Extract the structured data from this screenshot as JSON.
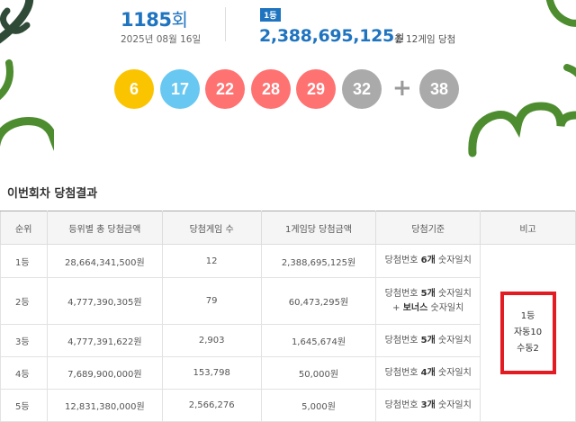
{
  "round": {
    "number": "1185",
    "suffix": "회",
    "date": "2025년 08월 16일"
  },
  "first_prize": {
    "badge": "1등",
    "amount": "2,388,695,125",
    "unit": "원",
    "winners_text": "총 12게임 당첨"
  },
  "balls": [
    {
      "number": "6",
      "color": "#fbc400"
    },
    {
      "number": "17",
      "color": "#69c8f2"
    },
    {
      "number": "22",
      "color": "#ff7272"
    },
    {
      "number": "28",
      "color": "#ff7272"
    },
    {
      "number": "29",
      "color": "#ff7272"
    },
    {
      "number": "32",
      "color": "#aaaaaa"
    }
  ],
  "plus_sign": "+",
  "bonus_ball": {
    "number": "38",
    "color": "#aaaaaa"
  },
  "section_title": "이번회차 당첨결과",
  "table": {
    "headers": [
      "순위",
      "등위별 총 당첨금액",
      "당첨게임 수",
      "1게임당 당첨금액",
      "당첨기준",
      "비고"
    ],
    "rows": [
      {
        "rank": "1등",
        "total": "28,664,341,500원",
        "count": "12",
        "per_game": "2,388,695,125원",
        "crit_prefix": "당첨번호 ",
        "crit_bold": "6개",
        "crit_suffix": " 숫자일치"
      },
      {
        "rank": "2등",
        "total": "4,777,390,305원",
        "count": "79",
        "per_game": "60,473,295원",
        "crit_prefix": "당첨번호 ",
        "crit_bold": "5개",
        "crit_suffix": " 숫자일치",
        "crit2_prefix": "+ ",
        "crit2_bold": "보너스",
        "crit2_suffix": " 숫자일치"
      },
      {
        "rank": "3등",
        "total": "4,777,391,622원",
        "count": "2,903",
        "per_game": "1,645,674원",
        "crit_prefix": "당첨번호 ",
        "crit_bold": "5개",
        "crit_suffix": " 숫자일치"
      },
      {
        "rank": "4등",
        "total": "7,689,900,000원",
        "count": "153,798",
        "per_game": "50,000원",
        "crit_prefix": "당첨번호 ",
        "crit_bold": "4개",
        "crit_suffix": " 숫자일치"
      },
      {
        "rank": "5등",
        "total": "12,831,380,000원",
        "count": "2,566,276",
        "per_game": "5,000원",
        "crit_prefix": "당첨번호 ",
        "crit_bold": "3개",
        "crit_suffix": " 숫자일치"
      }
    ],
    "remark": {
      "line1": "1등",
      "line2": "자동10",
      "line3": "수동2"
    }
  },
  "colors": {
    "accent": "#1f74c0",
    "decoration": "#4d8c2f",
    "highlight_border": "#e31b23"
  }
}
